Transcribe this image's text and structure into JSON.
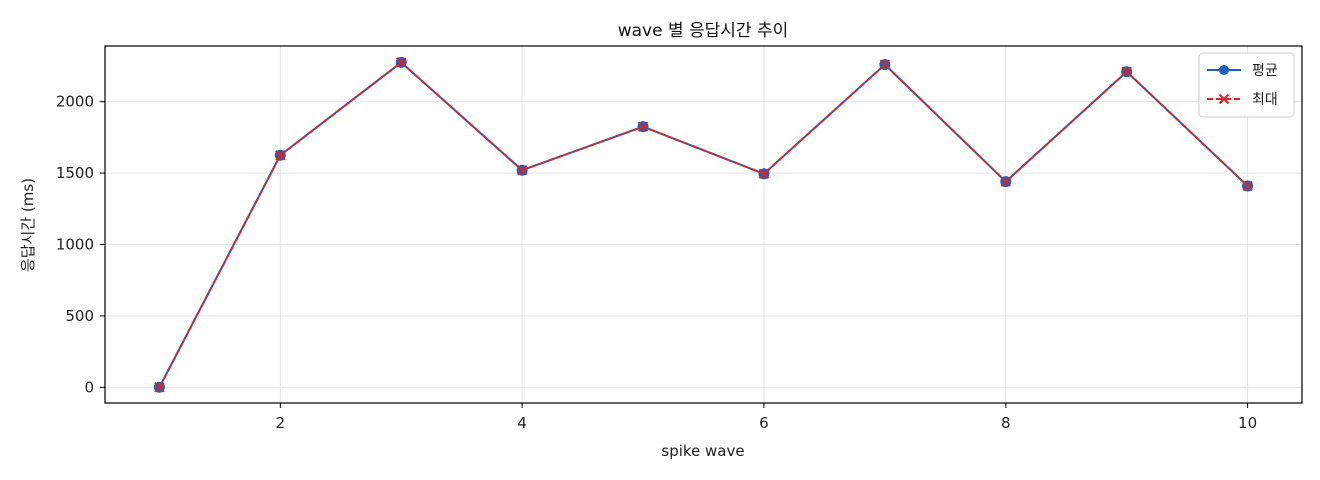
{
  "chart_data": {
    "type": "line",
    "title": "wave 별 응답시간 추이",
    "xlabel": "spike wave",
    "ylabel": "응답시간 (ms)",
    "x": [
      1,
      2,
      3,
      4,
      5,
      6,
      7,
      8,
      9,
      10
    ],
    "xlim": [
      0.55,
      10.45
    ],
    "ylim": [
      -110,
      2390
    ],
    "xticks": [
      2,
      4,
      6,
      8,
      10
    ],
    "yticks": [
      0,
      500,
      1000,
      1500,
      2000
    ],
    "grid": true,
    "legend_position": "top-right",
    "series": [
      {
        "name": "평균",
        "values": [
          0,
          1625,
          2275,
          1520,
          1825,
          1495,
          2260,
          1440,
          2210,
          1410
        ],
        "color": "#1f5fbf",
        "marker": "circle",
        "line_style": "solid"
      },
      {
        "name": "최대",
        "values": [
          0,
          1625,
          2275,
          1520,
          1825,
          1495,
          2260,
          1440,
          2210,
          1410
        ],
        "color": "#d62728",
        "marker": "x",
        "line_style": "dashed"
      }
    ]
  }
}
